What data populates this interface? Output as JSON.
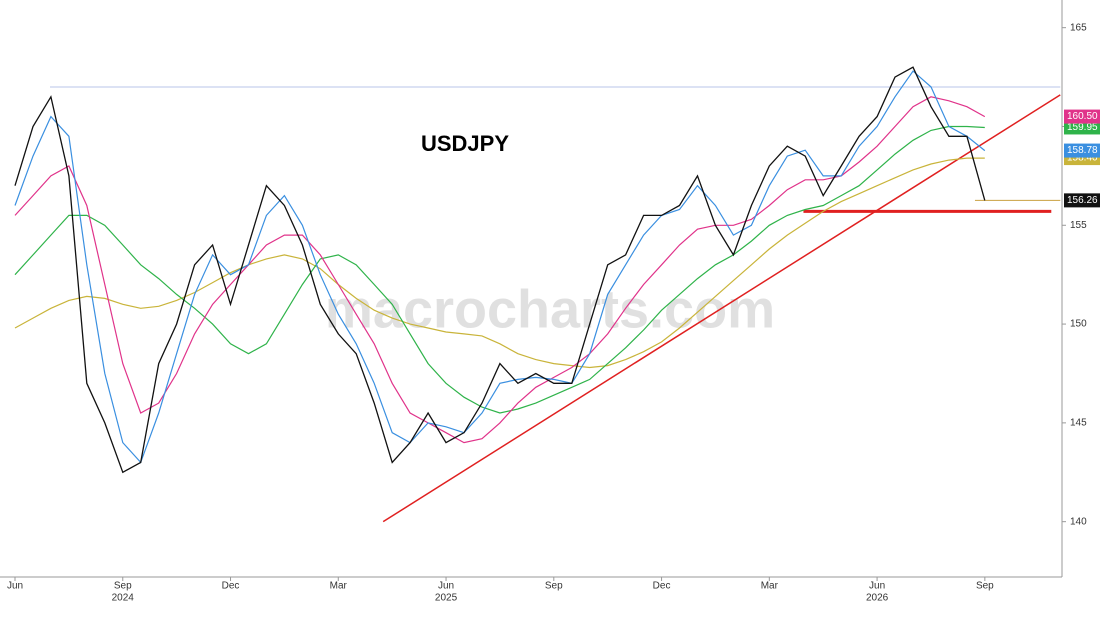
{
  "chart_data": {
    "type": "line",
    "title": "USDJPY",
    "watermark": "macrocharts.com",
    "categories": [
      "Jun",
      null,
      null,
      null,
      null,
      null,
      "Sep",
      null,
      null,
      null,
      null,
      null,
      "Dec",
      null,
      null,
      null,
      null,
      null,
      "Mar",
      null,
      null,
      null,
      null,
      null,
      "Jun",
      null,
      null,
      null,
      null,
      null,
      "Sep",
      null,
      null,
      null,
      null,
      null,
      "Dec",
      null,
      null,
      null,
      null,
      null,
      "Mar",
      null,
      null,
      null,
      null,
      null,
      "Jun",
      null,
      null,
      null,
      null,
      null,
      "Sep"
    ],
    "category_years": [
      null,
      null,
      null,
      null,
      null,
      null,
      "2024",
      null,
      null,
      null,
      null,
      null,
      null,
      null,
      null,
      null,
      null,
      null,
      null,
      null,
      null,
      null,
      null,
      null,
      "2025",
      null,
      null,
      null,
      null,
      null,
      null,
      null,
      null,
      null,
      null,
      null,
      null,
      null,
      null,
      null,
      null,
      null,
      null,
      null,
      null,
      null,
      null,
      null,
      "2026",
      null,
      null,
      null,
      null,
      null,
      null
    ],
    "series": [
      {
        "color": "#c9b43a",
        "values": [
          149.8,
          150.3,
          150.8,
          151.2,
          151.4,
          151.3,
          151,
          150.8,
          150.9,
          151.2,
          151.6,
          152.1,
          152.6,
          153,
          153.3,
          153.5,
          153.3,
          152.8,
          152,
          151.3,
          150.7,
          150.3,
          150,
          149.8,
          149.6,
          149.5,
          149.4,
          149,
          148.5,
          148.2,
          148,
          147.9,
          147.8,
          147.9,
          148.2,
          148.6,
          149.1,
          149.8,
          150.6,
          151.4,
          152.2,
          153,
          153.8,
          154.5,
          155.1,
          155.7,
          156.2,
          156.6,
          157,
          157.4,
          157.8,
          158.1,
          158.3,
          158.4,
          158.4
        ],
        "value_labels": [
          null,
          null,
          null,
          null,
          null,
          null,
          null,
          null,
          null,
          null,
          null,
          null,
          null,
          null,
          null,
          null,
          null,
          null,
          null,
          null,
          null,
          null,
          null,
          null,
          null,
          null,
          null,
          null,
          null,
          null,
          null,
          null,
          null,
          null,
          null,
          null,
          null,
          null,
          null,
          null,
          null,
          null,
          null,
          null,
          null,
          null,
          null,
          null,
          null,
          null,
          null,
          null,
          null,
          null,
          "158.40"
        ]
      },
      {
        "color": "#2fb34a",
        "values": [
          152.5,
          153.5,
          154.5,
          155.5,
          155.5,
          155,
          154,
          153,
          152.3,
          151.5,
          150.8,
          150,
          149,
          148.5,
          149,
          150.5,
          152,
          153.3,
          153.5,
          153,
          152,
          151,
          149.5,
          148,
          147,
          146.3,
          145.8,
          145.5,
          145.7,
          146,
          146.4,
          146.8,
          147.2,
          148,
          148.8,
          149.7,
          150.7,
          151.5,
          152.3,
          153,
          153.5,
          154.2,
          155,
          155.5,
          155.8,
          156,
          156.5,
          157,
          157.8,
          158.6,
          159.3,
          159.8,
          160,
          160,
          159.95
        ],
        "value_labels": [
          null,
          null,
          null,
          null,
          null,
          null,
          null,
          null,
          null,
          null,
          null,
          null,
          null,
          null,
          null,
          null,
          null,
          null,
          null,
          null,
          null,
          null,
          null,
          null,
          null,
          null,
          null,
          null,
          null,
          null,
          null,
          null,
          null,
          null,
          null,
          null,
          null,
          null,
          null,
          null,
          null,
          null,
          null,
          null,
          null,
          null,
          null,
          null,
          null,
          null,
          null,
          null,
          null,
          null,
          "159.95"
        ]
      },
      {
        "color": "#e0338a",
        "values": [
          155.5,
          156.5,
          157.5,
          158,
          156,
          152,
          148,
          145.5,
          146,
          147.5,
          149.5,
          151,
          152,
          153,
          154,
          154.5,
          154.5,
          153.5,
          152,
          150.5,
          149,
          147,
          145.5,
          145,
          144.5,
          144,
          144.2,
          145,
          146,
          146.8,
          147.3,
          147.8,
          148.5,
          149.5,
          150.8,
          152,
          153,
          154,
          154.8,
          155,
          155,
          155.3,
          156,
          156.8,
          157.3,
          157.3,
          157.5,
          158.2,
          159,
          160,
          161,
          161.5,
          161.3,
          161,
          160.5
        ],
        "value_labels": [
          null,
          null,
          null,
          null,
          null,
          null,
          null,
          null,
          null,
          null,
          null,
          null,
          null,
          null,
          null,
          null,
          null,
          null,
          null,
          null,
          null,
          null,
          null,
          null,
          null,
          null,
          null,
          null,
          null,
          null,
          null,
          null,
          null,
          null,
          null,
          null,
          null,
          null,
          null,
          null,
          null,
          null,
          null,
          null,
          null,
          null,
          null,
          null,
          null,
          null,
          null,
          null,
          null,
          null,
          "160.50"
        ]
      },
      {
        "color": "#3a8fe0",
        "values": [
          156,
          158.5,
          160.5,
          159.5,
          153,
          147.5,
          144,
          143,
          145.5,
          148.5,
          151.5,
          153.5,
          152.5,
          153,
          155.5,
          156.5,
          155,
          152.5,
          150.5,
          149,
          147,
          144.5,
          144,
          145,
          144.8,
          144.5,
          145.5,
          147,
          147.2,
          147.3,
          147.2,
          147,
          148.5,
          151.5,
          153,
          154.5,
          155.5,
          155.8,
          157,
          156,
          154.5,
          155,
          157,
          158.5,
          158.8,
          157.5,
          157.5,
          159,
          160,
          161.5,
          162.8,
          162,
          160,
          159.5,
          158.78
        ],
        "value_labels": [
          null,
          null,
          null,
          null,
          null,
          null,
          null,
          null,
          null,
          null,
          null,
          null,
          null,
          null,
          null,
          null,
          null,
          null,
          null,
          null,
          null,
          null,
          null,
          null,
          null,
          null,
          null,
          null,
          null,
          null,
          null,
          null,
          null,
          null,
          null,
          null,
          null,
          null,
          null,
          null,
          null,
          null,
          null,
          null,
          null,
          null,
          null,
          null,
          null,
          null,
          null,
          null,
          null,
          null,
          "158.78"
        ]
      },
      {
        "color": "#111111",
        "values": [
          157,
          160,
          161.5,
          157.5,
          147,
          145,
          142.5,
          143,
          148,
          150,
          153,
          154,
          151,
          154,
          157,
          156,
          154,
          151,
          149.5,
          148.5,
          146,
          143,
          144,
          145.5,
          144,
          144.5,
          146,
          148,
          147,
          147.5,
          147,
          147,
          150,
          153,
          153.5,
          155.5,
          155.5,
          156,
          157.5,
          155,
          153.5,
          156,
          158,
          159,
          158.5,
          156.5,
          158,
          159.5,
          160.5,
          162.5,
          163,
          161,
          159.5,
          159.5,
          156.26
        ]
      }
    ],
    "lines": [
      {
        "color": "#b8c4e8",
        "x": [
          1.95,
          58.2
        ],
        "y": [
          162,
          162
        ]
      },
      {
        "color": "#c9a040",
        "x": [
          53.45,
          58.2
        ],
        "y": [
          156.26,
          156.26
        ]
      },
      {
        "color": "#e02020",
        "x": [
          20.5,
          58.2
        ],
        "y": [
          140,
          161.6
        ]
      },
      {
        "color": "#e02020",
        "x": [
          43.9,
          57.7
        ],
        "y": [
          155.7,
          155.7
        ]
      }
    ],
    "ylim": [
      137.2,
      166.4
    ],
    "yticks": [
      140,
      145,
      150,
      155,
      160,
      165
    ]
  }
}
